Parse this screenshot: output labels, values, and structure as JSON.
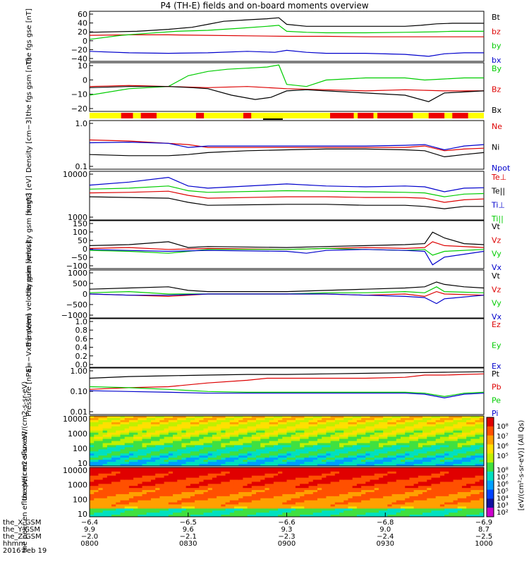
{
  "title": "P4 (TH-E) fields and on-board moments overview",
  "chart_data": [
    {
      "type": "line",
      "ylabel": "the fgs gse [nT]",
      "ylim": [
        -40,
        60
      ],
      "yticks": [
        "60",
        "40",
        "20",
        "0",
        "−20",
        "−40"
      ],
      "legend": [
        "Bt",
        "bz",
        "by",
        "bx"
      ],
      "series": [
        {
          "name": "Bt",
          "color": "#000000",
          "x": [
            0,
            0.12,
            0.2,
            0.26,
            0.3,
            0.34,
            0.4,
            0.45,
            0.48,
            0.5,
            0.55,
            0.6,
            0.7,
            0.8,
            0.84,
            0.88,
            0.92,
            1
          ],
          "y": [
            18,
            20,
            24,
            28,
            34,
            40,
            43,
            45,
            47,
            34,
            30,
            30,
            30,
            30,
            32,
            35,
            36,
            36
          ]
        },
        {
          "name": "bz",
          "color": "#dd0000",
          "x": [
            0,
            0.1,
            0.2,
            0.3,
            0.4,
            0.5,
            0.6,
            0.7,
            0.8,
            0.9,
            1
          ],
          "y": [
            12,
            13,
            13,
            12,
            11,
            10,
            10,
            9,
            9,
            9,
            9
          ]
        },
        {
          "name": "by",
          "color": "#00cc00",
          "x": [
            0,
            0.08,
            0.15,
            0.22,
            0.3,
            0.38,
            0.45,
            0.48,
            0.5,
            0.55,
            0.6,
            0.7,
            0.8,
            0.88,
            0.92,
            1
          ],
          "y": [
            4,
            12,
            16,
            20,
            22,
            26,
            30,
            32,
            20,
            18,
            17,
            17,
            18,
            19,
            20,
            20
          ]
        },
        {
          "name": "bx",
          "color": "#0000cc",
          "x": [
            0,
            0.1,
            0.2,
            0.3,
            0.4,
            0.47,
            0.5,
            0.55,
            0.6,
            0.7,
            0.8,
            0.86,
            0.9,
            0.95,
            1
          ],
          "y": [
            -20,
            -23,
            -24,
            -23,
            -20,
            -22,
            -18,
            -22,
            -24,
            -24,
            -26,
            -30,
            -25,
            -23,
            -23
          ]
        }
      ]
    },
    {
      "type": "line",
      "ylabel": "the fgs gsm [nT]",
      "ylim": [
        -25,
        20
      ],
      "yticks": [
        "10",
        "0",
        "−10",
        "−20"
      ],
      "legend": [
        "By",
        "Bz",
        "Bx"
      ],
      "series": [
        {
          "name": "By",
          "color": "#00cc00",
          "x": [
            0,
            0.1,
            0.2,
            0.25,
            0.3,
            0.35,
            0.4,
            0.45,
            0.48,
            0.5,
            0.55,
            0.6,
            0.7,
            0.8,
            0.85,
            0.9,
            0.95,
            1
          ],
          "y": [
            -10,
            -4,
            -2,
            8,
            12,
            14,
            15,
            16,
            18,
            0,
            -2,
            4,
            6,
            6,
            4,
            5,
            6,
            6
          ]
        },
        {
          "name": "Bz",
          "color": "#dd0000",
          "x": [
            0,
            0.1,
            0.2,
            0.3,
            0.4,
            0.5,
            0.6,
            0.7,
            0.8,
            0.9,
            1
          ],
          "y": [
            -2,
            -1,
            -2,
            -3,
            -2,
            -4,
            -5,
            -6,
            -5,
            -6,
            -6
          ]
        },
        {
          "name": "Bx",
          "color": "#000000",
          "x": [
            0,
            0.1,
            0.2,
            0.26,
            0.3,
            0.36,
            0.42,
            0.46,
            0.5,
            0.55,
            0.6,
            0.7,
            0.8,
            0.86,
            0.9,
            0.95,
            1
          ],
          "y": [
            -3,
            -2,
            -2,
            -3,
            -4,
            -10,
            -14,
            -12,
            -6,
            -5,
            -6,
            -8,
            -10,
            -16,
            -8,
            -7,
            -6
          ]
        }
      ]
    },
    {
      "type": "line",
      "ylabel": "Density [cm−3]",
      "scale": "log",
      "ylim": [
        0.1,
        1.0
      ],
      "yticks": [
        "1.0",
        "0.1"
      ],
      "legend": [
        "Ne",
        "Ni",
        "Npot"
      ],
      "series": [
        {
          "name": "Ne",
          "color": "#dd0000",
          "x": [
            0,
            0.1,
            0.2,
            0.25,
            0.3,
            0.5,
            0.6,
            0.7,
            0.8,
            0.85,
            0.9,
            0.95,
            1
          ],
          "y": [
            0.4,
            0.38,
            0.34,
            0.32,
            0.28,
            0.28,
            0.28,
            0.28,
            0.28,
            0.3,
            0.24,
            0.26,
            0.27
          ]
        },
        {
          "name": "Ni",
          "color": "#000000",
          "x": [
            0,
            0.1,
            0.2,
            0.25,
            0.3,
            0.4,
            0.5,
            0.6,
            0.7,
            0.8,
            0.85,
            0.9,
            0.95,
            1
          ],
          "y": [
            0.2,
            0.19,
            0.19,
            0.2,
            0.22,
            0.24,
            0.25,
            0.26,
            0.26,
            0.25,
            0.24,
            0.18,
            0.2,
            0.22
          ]
        },
        {
          "name": "Npot",
          "color": "#0000cc",
          "x": [
            0,
            0.1,
            0.2,
            0.25,
            0.3,
            0.5,
            0.6,
            0.7,
            0.8,
            0.85,
            0.9,
            0.95,
            1
          ],
          "y": [
            0.35,
            0.36,
            0.34,
            0.28,
            0.3,
            0.3,
            0.3,
            0.3,
            0.31,
            0.32,
            0.25,
            0.3,
            0.32
          ]
        }
      ]
    },
    {
      "type": "line",
      "ylabel": "magt3 [eV]",
      "scale": "log",
      "ylim": [
        1000,
        10000
      ],
      "yticks": [
        "10000",
        "1000"
      ],
      "legend": [
        "Te⊥",
        "Te||",
        "Ti⊥",
        "Ti||"
      ],
      "series": [
        {
          "name": "Te||",
          "color": "#0000cc",
          "x": [
            0,
            0.1,
            0.2,
            0.25,
            0.3,
            0.5,
            0.6,
            0.7,
            0.8,
            0.85,
            0.9,
            0.95,
            1
          ],
          "y": [
            5200,
            6000,
            7500,
            5000,
            4500,
            5500,
            5000,
            4800,
            5000,
            4800,
            3800,
            4500,
            4600
          ]
        },
        {
          "name": "Ti||",
          "color": "#00cc00",
          "x": [
            0,
            0.1,
            0.2,
            0.25,
            0.3,
            0.5,
            0.6,
            0.7,
            0.8,
            0.85,
            0.9,
            0.95,
            1
          ],
          "y": [
            4300,
            4500,
            5000,
            4000,
            3700,
            4000,
            3900,
            3800,
            3700,
            3600,
            3000,
            3400,
            3500
          ]
        },
        {
          "name": "Te⊥",
          "color": "#dd0000",
          "x": [
            0,
            0.1,
            0.2,
            0.25,
            0.3,
            0.5,
            0.6,
            0.7,
            0.8,
            0.85,
            0.9,
            0.95,
            1
          ],
          "y": [
            3600,
            3700,
            3900,
            3200,
            2800,
            3000,
            3000,
            2900,
            2900,
            2800,
            2300,
            2600,
            2700
          ]
        },
        {
          "name": "Ti⊥",
          "color": "#000000",
          "x": [
            0,
            0.1,
            0.2,
            0.25,
            0.3,
            0.5,
            0.6,
            0.7,
            0.8,
            0.85,
            0.9,
            0.95,
            1
          ],
          "y": [
            3000,
            2900,
            2800,
            2300,
            2000,
            2100,
            2100,
            2000,
            2000,
            1900,
            1700,
            1900,
            1900
          ]
        }
      ]
    },
    {
      "type": "line",
      "ylabel": "the peim velocity gsm [km/s]",
      "ylim": [
        -100,
        150
      ],
      "yticks": [
        "150",
        "100",
        "50",
        "0",
        "−50",
        "−100"
      ],
      "legend": [
        "Vt",
        "Vz",
        "Vy",
        "Vx"
      ],
      "series": [
        {
          "name": "Vt",
          "color": "#000000",
          "x": [
            0,
            0.1,
            0.2,
            0.25,
            0.3,
            0.5,
            0.6,
            0.7,
            0.8,
            0.85,
            0.87,
            0.9,
            0.95,
            1
          ],
          "y": [
            20,
            25,
            40,
            10,
            15,
            10,
            15,
            20,
            25,
            30,
            90,
            60,
            30,
            25
          ]
        },
        {
          "name": "Vz",
          "color": "#dd0000",
          "x": [
            0,
            0.1,
            0.2,
            0.3,
            0.5,
            0.6,
            0.7,
            0.8,
            0.85,
            0.87,
            0.9,
            1
          ],
          "y": [
            5,
            10,
            0,
            5,
            0,
            5,
            10,
            5,
            10,
            40,
            20,
            10
          ]
        },
        {
          "name": "Vy",
          "color": "#00cc00",
          "x": [
            0,
            0.1,
            0.2,
            0.3,
            0.5,
            0.6,
            0.7,
            0.8,
            0.85,
            0.87,
            0.9,
            1
          ],
          "y": [
            -5,
            -10,
            -20,
            0,
            0,
            5,
            0,
            -5,
            0,
            -30,
            -10,
            0
          ]
        },
        {
          "name": "Vx",
          "color": "#0000cc",
          "x": [
            0,
            0.1,
            0.2,
            0.3,
            0.5,
            0.55,
            0.6,
            0.7,
            0.8,
            0.85,
            0.87,
            0.9,
            1
          ],
          "y": [
            0,
            -5,
            -10,
            -5,
            -10,
            -20,
            -5,
            0,
            -5,
            -10,
            -80,
            -40,
            -10
          ]
        }
      ]
    },
    {
      "type": "line",
      "ylabel": "the peem velocity gsm [km/s]",
      "ylim": [
        -1000,
        1000
      ],
      "yticks": [
        "1000",
        "500",
        "0",
        "−500",
        "−1000"
      ],
      "legend": [
        "Vt",
        "Vz",
        "Vy",
        "Vx"
      ],
      "series": [
        {
          "name": "Vt",
          "color": "#000000",
          "x": [
            0,
            0.1,
            0.2,
            0.25,
            0.3,
            0.5,
            0.6,
            0.7,
            0.8,
            0.85,
            0.88,
            0.9,
            0.95,
            1
          ],
          "y": [
            200,
            250,
            300,
            150,
            100,
            100,
            150,
            200,
            250,
            300,
            500,
            400,
            300,
            250
          ]
        },
        {
          "name": "Vz",
          "color": "#dd0000",
          "x": [
            0,
            0.1,
            0.2,
            0.3,
            0.5,
            0.6,
            0.7,
            0.8,
            0.85,
            0.88,
            0.9,
            1
          ],
          "y": [
            0,
            -50,
            -100,
            0,
            0,
            0,
            -50,
            0,
            -100,
            100,
            0,
            -50
          ]
        },
        {
          "name": "Vy",
          "color": "#00cc00",
          "x": [
            0,
            0.1,
            0.2,
            0.3,
            0.5,
            0.6,
            0.7,
            0.8,
            0.85,
            0.88,
            0.9,
            1
          ],
          "y": [
            50,
            100,
            0,
            0,
            0,
            50,
            50,
            100,
            50,
            300,
            100,
            50
          ]
        },
        {
          "name": "Vx",
          "color": "#0000cc",
          "x": [
            0,
            0.1,
            0.2,
            0.3,
            0.5,
            0.6,
            0.7,
            0.8,
            0.85,
            0.88,
            0.9,
            1
          ],
          "y": [
            0,
            -50,
            -50,
            0,
            0,
            0,
            -50,
            -100,
            -150,
            -400,
            -200,
            -50
          ]
        }
      ]
    },
    {
      "type": "line",
      "ylabel": "E=−VxB [mV/m]",
      "ylim": [
        0,
        1
      ],
      "yticks": [
        "1.0",
        "0.8",
        "0.6",
        "0.4",
        "0.2",
        "0.0"
      ],
      "legend": [
        "Ez",
        "Ey",
        "Ex"
      ],
      "series": []
    },
    {
      "type": "line",
      "ylabel": "Pressure [nPa]",
      "scale": "log",
      "ylim": [
        0.01,
        1.5
      ],
      "yticks": [
        "1.00",
        "0.10",
        "0.01"
      ],
      "legend": [
        "Pt",
        "Pb",
        "Pe",
        "Pi"
      ],
      "series": [
        {
          "name": "Pt",
          "color": "#000000",
          "x": [
            0,
            0.1,
            0.2,
            0.3,
            0.4,
            0.5,
            0.6,
            0.7,
            0.8,
            0.9,
            1
          ],
          "y": [
            0.5,
            0.6,
            0.65,
            0.7,
            0.75,
            0.75,
            0.8,
            0.85,
            0.9,
            0.95,
            1.0
          ]
        },
        {
          "name": "Pb",
          "color": "#dd0000",
          "x": [
            0,
            0.1,
            0.2,
            0.3,
            0.4,
            0.45,
            0.5,
            0.6,
            0.7,
            0.8,
            0.85,
            0.9,
            0.95,
            1
          ],
          "y": [
            0.15,
            0.18,
            0.2,
            0.3,
            0.4,
            0.5,
            0.5,
            0.5,
            0.5,
            0.55,
            0.7,
            0.7,
            0.75,
            0.8
          ]
        },
        {
          "name": "Pe",
          "color": "#00cc00",
          "x": [
            0,
            0.1,
            0.2,
            0.3,
            0.4,
            0.5,
            0.6,
            0.7,
            0.8,
            0.85,
            0.9,
            0.95,
            1
          ],
          "y": [
            0.2,
            0.18,
            0.15,
            0.12,
            0.11,
            0.11,
            0.11,
            0.11,
            0.11,
            0.1,
            0.07,
            0.1,
            0.11
          ]
        },
        {
          "name": "Pi",
          "color": "#0000cc",
          "x": [
            0,
            0.1,
            0.2,
            0.3,
            0.4,
            0.5,
            0.6,
            0.7,
            0.8,
            0.85,
            0.9,
            0.95,
            1
          ],
          "y": [
            0.13,
            0.12,
            0.11,
            0.1,
            0.1,
            0.1,
            0.1,
            0.1,
            0.1,
            0.09,
            0.06,
            0.09,
            0.1
          ]
        }
      ]
    },
    {
      "type": "heatmap",
      "ylabel": "the peir en eflux eV/(cm2-s-sr-eV)",
      "scale": "log",
      "ylim": [
        10,
        10000
      ],
      "yticks": [
        "10000",
        "1000",
        "100",
        "10"
      ],
      "colorbar": [
        "10⁸",
        "10⁷",
        "10⁶",
        "10⁵"
      ]
    },
    {
      "type": "heatmap",
      "ylabel": "the peer en eflux eV/(cm2-s-sr-eV)",
      "scale": "log",
      "ylim": [
        10,
        10000
      ],
      "yticks": [
        "10000",
        "1000",
        "100",
        "10"
      ],
      "colorbar": [
        "10⁸",
        "10⁷",
        "10⁶",
        "10⁵",
        "10⁴",
        "10³",
        "10²"
      ]
    }
  ],
  "colorbar_label": "[eV/(cm²-s-sr-eV)] (All Qs)",
  "xaxis": {
    "row_labels": [
      "the_X-GSM",
      "the_Y-GSM",
      "the_Z-GSM",
      "hhmm",
      "2016 Feb 19"
    ],
    "ticks": [
      {
        "x": 0.0,
        "vals": [
          "−6.4",
          "9.9",
          "−2.0",
          "0800"
        ]
      },
      {
        "x": 0.25,
        "vals": [
          "−6.5",
          "9.6",
          "−2.1",
          "0830"
        ]
      },
      {
        "x": 0.5,
        "vals": [
          "−6.6",
          "9.3",
          "−2.3",
          "0900"
        ]
      },
      {
        "x": 0.75,
        "vals": [
          "−6.8",
          "9.0",
          "−2.4",
          "0930"
        ]
      },
      {
        "x": 1.0,
        "vals": [
          "−6.9",
          "8.7",
          "−2.5",
          "1000"
        ]
      }
    ]
  }
}
